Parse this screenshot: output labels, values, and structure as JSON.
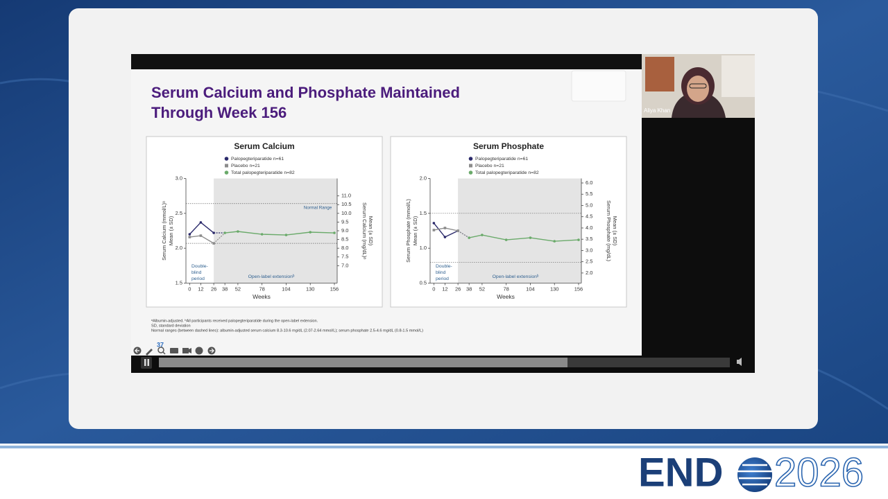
{
  "slide": {
    "title": [
      "Serum Calcium and Phosphate Maintained",
      "Through Week 156"
    ],
    "footnotes": [
      "ᵃAlbumin-adjusted. ᵇAll participants received palopegteriparatide during the open-label extension.",
      "SD, standard deviation",
      "Normal ranges (between dashed lines): albumin-adjusted serum calcium 8.3-10.6 mg/dL (2.07-2.64 mmol/L); serum phosphate 2.5-4.6 mg/dL (0.8-1.5 mmol/L)"
    ]
  },
  "chart_data": [
    {
      "type": "line",
      "title": "Serum Calcium",
      "x_label": "Weeks",
      "y_label": [
        "Serum Calcium (mmol/L)ᵃ",
        "Mean (± SD)"
      ],
      "y2_label": [
        "Serum Calcium (mg/dL)ᵃ",
        "Mean (± SD)"
      ],
      "x": [
        0,
        12,
        26,
        38,
        52,
        78,
        104,
        130,
        156
      ],
      "xlim": [
        -4,
        159
      ],
      "xticks": [
        0,
        12,
        26,
        38,
        52,
        78,
        104,
        130,
        156
      ],
      "ylim": [
        1.5,
        3.0
      ],
      "yticks": [
        1.5,
        {
          "value": 2,
          "label": "2.0"
        },
        2.5,
        {
          "value": 3,
          "label": "3.0"
        }
      ],
      "y2lim": [
        6.0,
        12.0
      ],
      "y2ticks": [
        {
          "value": 7,
          "label": "7.0"
        },
        7.5,
        {
          "value": 8,
          "label": "8.0"
        },
        8.5,
        {
          "value": 9,
          "label": "9.0"
        },
        9.5,
        {
          "value": 10,
          "label": "10.0"
        },
        10.5,
        {
          "value": 11,
          "label": "11.0"
        }
      ],
      "shade_from": 26,
      "normal_range": [
        2.07,
        2.64
      ],
      "annotations": {
        "normal_range": "Normal Range",
        "double_blind": [
          "Double-",
          "blind",
          "period"
        ],
        "open_label": "Open-label extensionᵇ"
      },
      "series": [
        {
          "name": "Palopegteriparatide n=61",
          "color": "#2b2a6b",
          "marker": "circle",
          "values": [
            2.2,
            2.37,
            2.22,
            null,
            null,
            null,
            null,
            null,
            null
          ]
        },
        {
          "name": "Placebo n=21",
          "color": "#8c8c8c",
          "marker": "square",
          "values": [
            2.16,
            2.18,
            2.07,
            null,
            null,
            null,
            null,
            null,
            null
          ]
        },
        {
          "name": "Total palopegteriparatide n=82",
          "color": "#6aaa6a",
          "marker": "circle",
          "values": [
            null,
            null,
            null,
            2.22,
            2.24,
            2.2,
            2.19,
            2.23,
            2.22
          ]
        }
      ]
    },
    {
      "type": "line",
      "title": "Serum Phosphate",
      "x_label": "Weeks",
      "y_label": [
        "Serum Phosphate (mmol/L)",
        "Mean (± SD)"
      ],
      "y2_label": [
        "Serum Phosphate (mg/dL)",
        "Mean (± SD)"
      ],
      "x": [
        0,
        12,
        26,
        38,
        52,
        78,
        104,
        130,
        156
      ],
      "xlim": [
        -4,
        159
      ],
      "xticks": [
        0,
        12,
        26,
        38,
        52,
        78,
        104,
        130,
        156
      ],
      "ylim": [
        0.5,
        2.0
      ],
      "yticks": [
        0.5,
        {
          "value": 1,
          "label": "1.0"
        },
        1.5,
        {
          "value": 2,
          "label": "2.0"
        }
      ],
      "y2lim": [
        1.55,
        6.2
      ],
      "y2ticks": [
        {
          "value": 2,
          "label": "2.0"
        },
        2.5,
        {
          "value": 3,
          "label": "3.0"
        },
        3.5,
        {
          "value": 4,
          "label": "4.0"
        },
        4.5,
        {
          "value": 5,
          "label": "5.0"
        },
        5.5,
        {
          "value": 6,
          "label": "6.0"
        }
      ],
      "shade_from": 26,
      "normal_range": [
        0.8,
        1.5
      ],
      "annotations": {
        "double_blind": [
          "Double-",
          "blind",
          "period"
        ],
        "open_label": "Open-label extensionᵇ"
      },
      "series": [
        {
          "name": "Palopegteriparatide n=61",
          "color": "#2b2a6b",
          "marker": "circle",
          "values": [
            1.36,
            1.16,
            1.25,
            null,
            null,
            null,
            null,
            null,
            null
          ]
        },
        {
          "name": "Placebo n=21",
          "color": "#8c8c8c",
          "marker": "square",
          "values": [
            1.26,
            1.29,
            1.25,
            null,
            null,
            null,
            null,
            null,
            null
          ]
        },
        {
          "name": "Total palopegteriparatide n=82",
          "color": "#6aaa6a",
          "marker": "circle",
          "values": [
            null,
            null,
            null,
            1.15,
            1.19,
            1.12,
            1.15,
            1.1,
            1.12
          ]
        }
      ]
    }
  ],
  "player": {
    "slide_number": "37",
    "speaker": "Aliya Khan"
  },
  "logo": {
    "left": "END",
    "right": "2026"
  }
}
